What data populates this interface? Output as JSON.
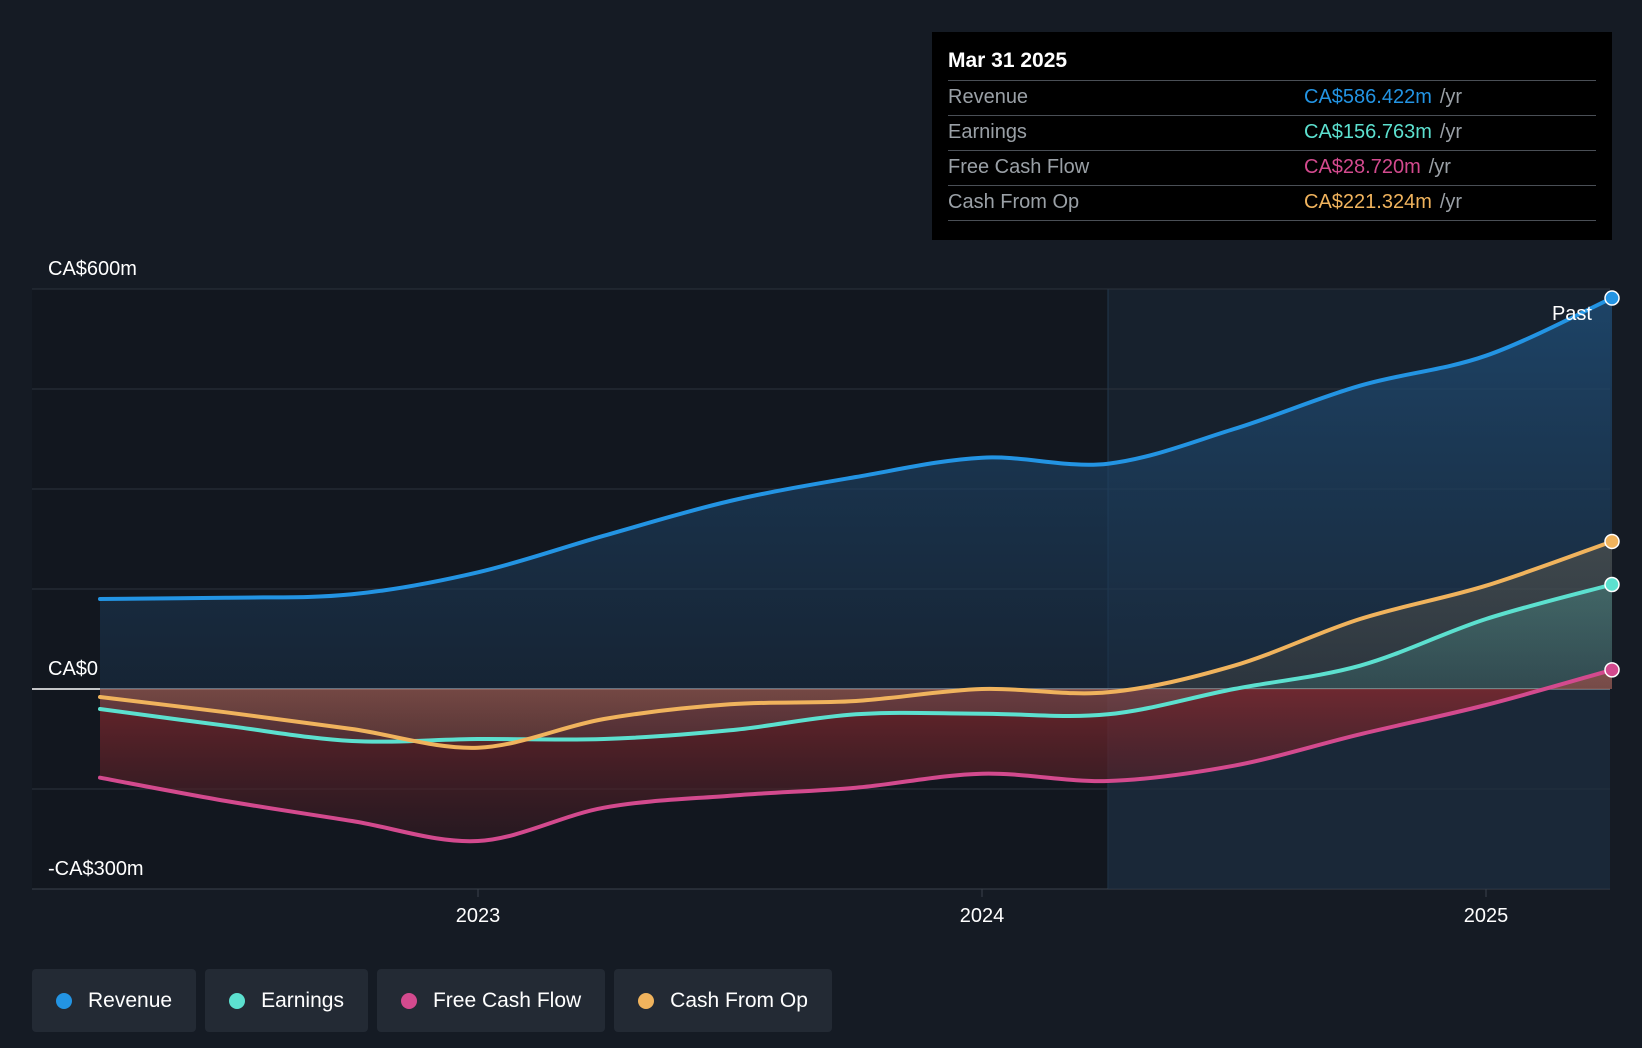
{
  "colors": {
    "background": "#151b24",
    "revenue": "#2394e3",
    "earnings": "#5ce0cf",
    "free_cash_flow": "#d34a8e",
    "cash_from_op": "#f0b35d",
    "negative_area": "#7a2a30",
    "grid": "#2c333d"
  },
  "tooltip": {
    "date": "Mar 31 2025",
    "rows": [
      {
        "label": "Revenue",
        "value": "CA$586.422m",
        "unit": "/yr",
        "color": "#2394e3"
      },
      {
        "label": "Earnings",
        "value": "CA$156.763m",
        "unit": "/yr",
        "color": "#5ce0cf"
      },
      {
        "label": "Free Cash Flow",
        "value": "CA$28.720m",
        "unit": "/yr",
        "color": "#d34a8e"
      },
      {
        "label": "Cash From Op",
        "value": "CA$221.324m",
        "unit": "/yr",
        "color": "#f0b35d"
      }
    ]
  },
  "chart_data": {
    "type": "line",
    "title": "",
    "xlabel": "",
    "ylabel": "",
    "y_tick_labels": [
      {
        "value": 600,
        "label": "CA$600m"
      },
      {
        "value": 0,
        "label": "CA$0"
      },
      {
        "value": -300,
        "label": "-CA$300m"
      }
    ],
    "x_tick_labels": [
      {
        "value": 2023.0,
        "label": "2023"
      },
      {
        "value": 2024.0,
        "label": "2024"
      },
      {
        "value": 2025.0,
        "label": "2025"
      }
    ],
    "ylim": [
      -300,
      600
    ],
    "xlim": [
      2022.1,
      2025.25
    ],
    "past_divider_x": 2024.25,
    "past_label": "Past",
    "series": [
      {
        "name": "Revenue",
        "color": "#2394e3",
        "points": [
          [
            2022.25,
            135
          ],
          [
            2022.5,
            137
          ],
          [
            2022.75,
            142
          ],
          [
            2023.0,
            175
          ],
          [
            2023.25,
            230
          ],
          [
            2023.5,
            282
          ],
          [
            2023.75,
            318
          ],
          [
            2024.0,
            347
          ],
          [
            2024.25,
            338
          ],
          [
            2024.5,
            390
          ],
          [
            2024.75,
            455
          ],
          [
            2025.0,
            500
          ],
          [
            2025.25,
            586.422
          ]
        ]
      },
      {
        "name": "Earnings",
        "color": "#5ce0cf",
        "points": [
          [
            2022.25,
            -30
          ],
          [
            2022.5,
            -55
          ],
          [
            2022.75,
            -78
          ],
          [
            2023.0,
            -75
          ],
          [
            2023.25,
            -75
          ],
          [
            2023.5,
            -62
          ],
          [
            2023.75,
            -38
          ],
          [
            2024.0,
            -37
          ],
          [
            2024.25,
            -38
          ],
          [
            2024.5,
            0
          ],
          [
            2024.75,
            35
          ],
          [
            2025.0,
            105
          ],
          [
            2025.25,
            156.763
          ]
        ]
      },
      {
        "name": "Free Cash Flow",
        "color": "#d34a8e",
        "points": [
          [
            2022.25,
            -133
          ],
          [
            2022.5,
            -168
          ],
          [
            2022.75,
            -198
          ],
          [
            2023.0,
            -228
          ],
          [
            2023.25,
            -178
          ],
          [
            2023.5,
            -160
          ],
          [
            2023.75,
            -148
          ],
          [
            2024.0,
            -127
          ],
          [
            2024.25,
            -138
          ],
          [
            2024.5,
            -115
          ],
          [
            2024.75,
            -68
          ],
          [
            2025.0,
            -24
          ],
          [
            2025.25,
            28.72
          ]
        ]
      },
      {
        "name": "Cash From Op",
        "color": "#f0b35d",
        "points": [
          [
            2022.25,
            -12
          ],
          [
            2022.5,
            -35
          ],
          [
            2022.75,
            -60
          ],
          [
            2023.0,
            -88
          ],
          [
            2023.25,
            -45
          ],
          [
            2023.5,
            -23
          ],
          [
            2023.75,
            -18
          ],
          [
            2024.0,
            0
          ],
          [
            2024.25,
            -5
          ],
          [
            2024.5,
            35
          ],
          [
            2024.75,
            105
          ],
          [
            2025.0,
            155
          ],
          [
            2025.25,
            221.324
          ]
        ]
      }
    ]
  },
  "legend": [
    {
      "label": "Revenue",
      "color": "#2394e3"
    },
    {
      "label": "Earnings",
      "color": "#5ce0cf"
    },
    {
      "label": "Free Cash Flow",
      "color": "#d34a8e"
    },
    {
      "label": "Cash From Op",
      "color": "#f0b35d"
    }
  ]
}
